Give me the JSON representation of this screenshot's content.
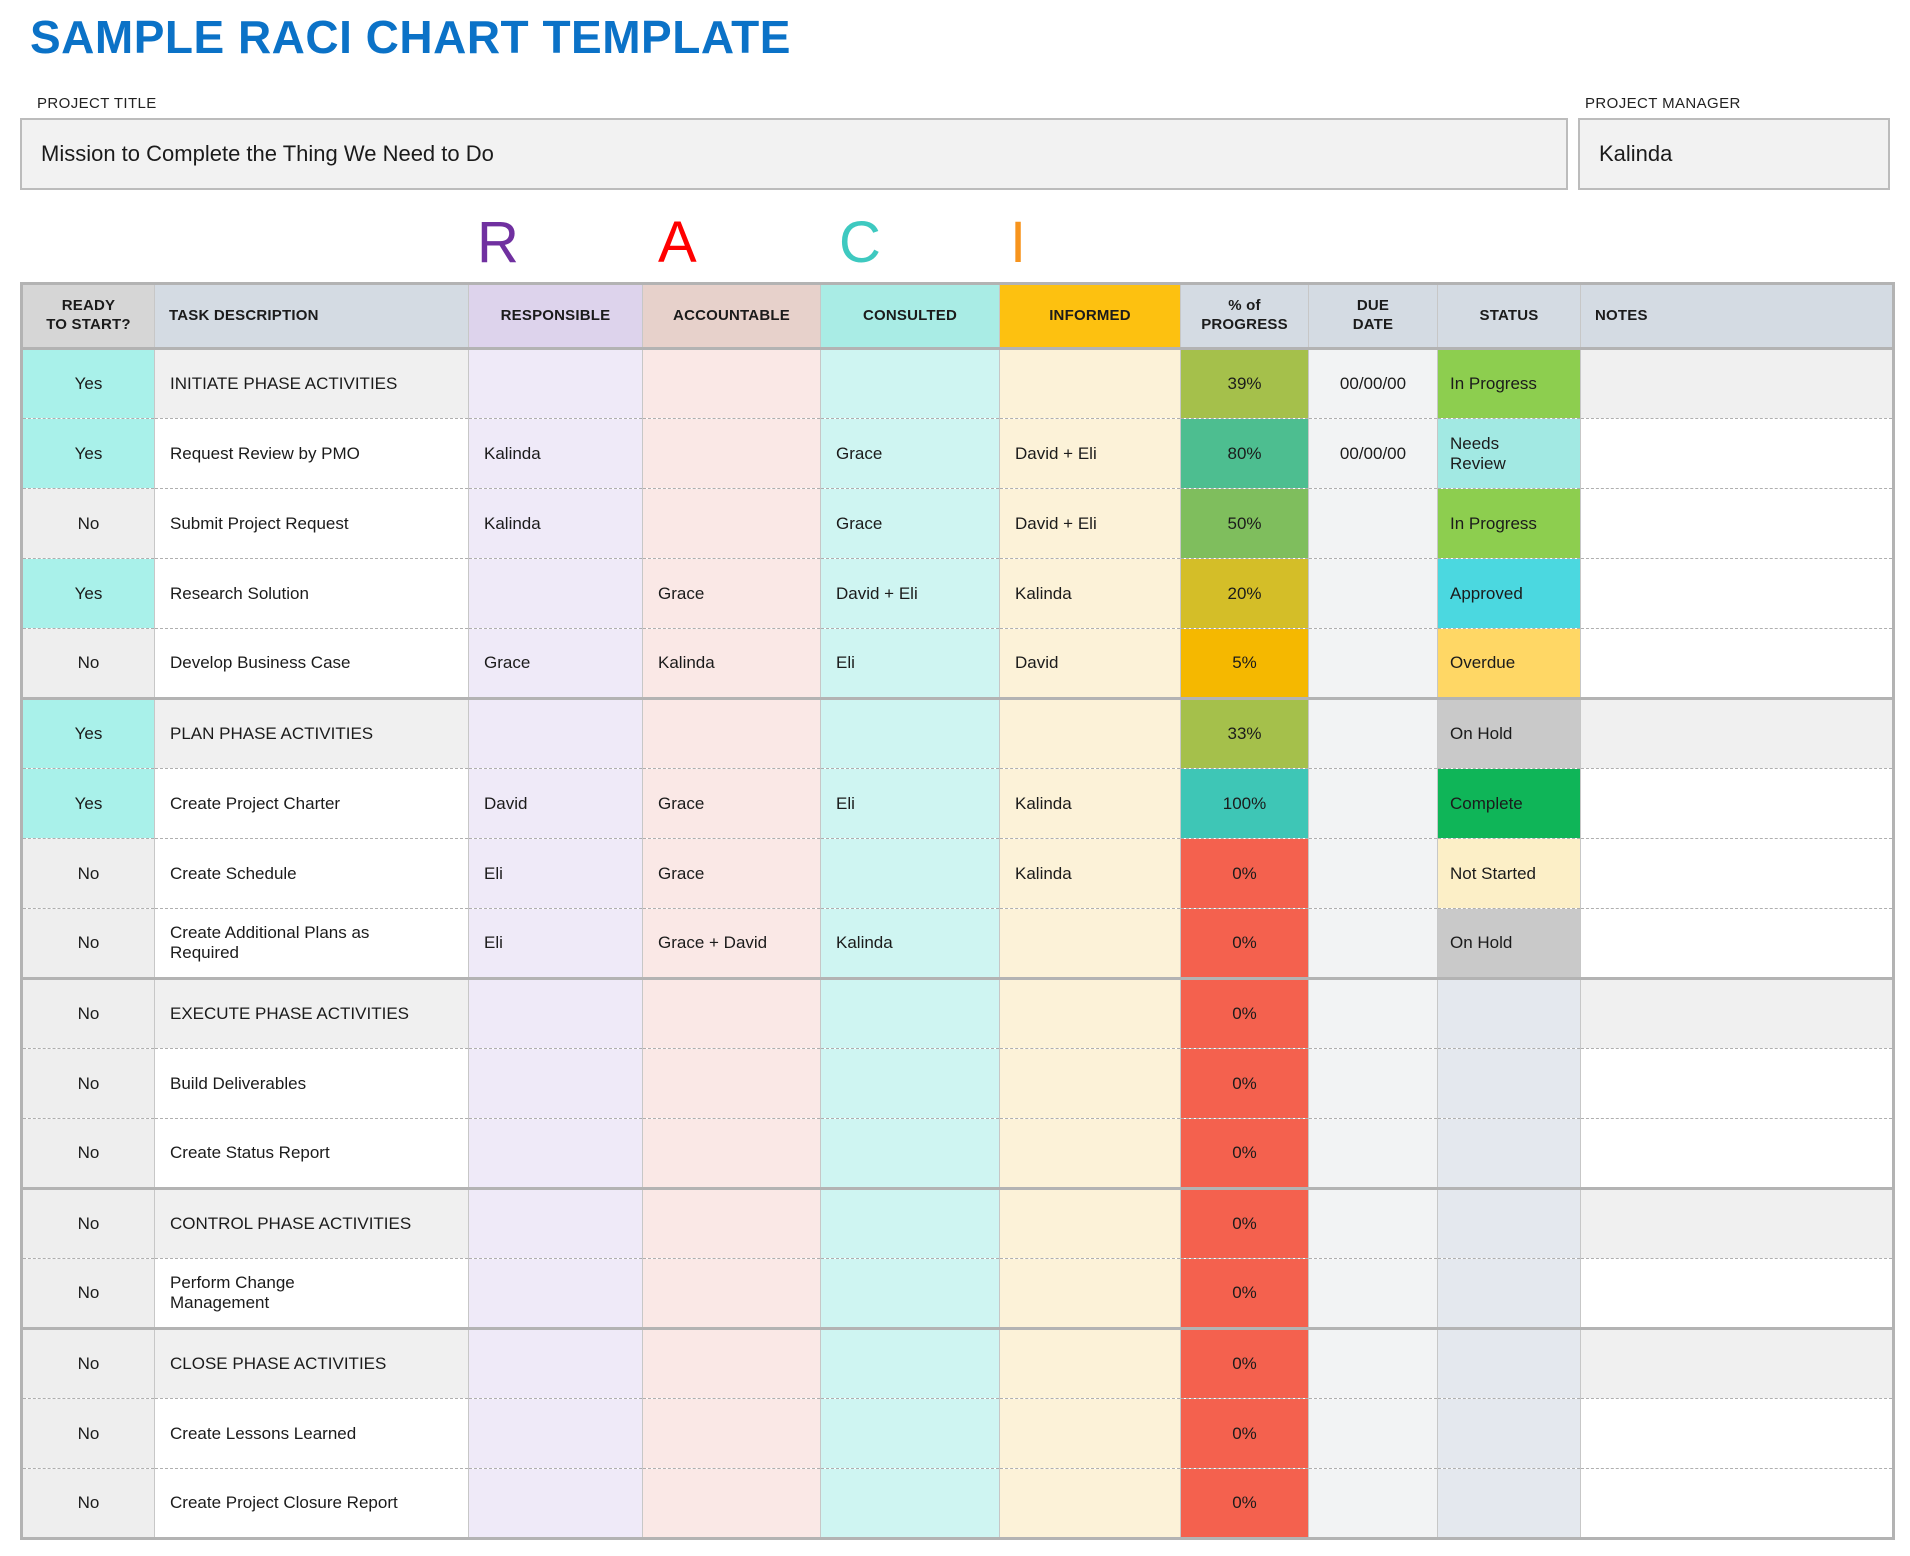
{
  "page": {
    "title": "SAMPLE RACI CHART TEMPLATE",
    "project_title_label": "PROJECT TITLE",
    "project_title_value": "Mission to Complete the Thing We Need to Do",
    "project_manager_label": "PROJECT MANAGER",
    "project_manager_value": "Kalinda"
  },
  "raci_letters": [
    {
      "letter": "R",
      "color": "#7030a0"
    },
    {
      "letter": "A",
      "color": "#ff0000"
    },
    {
      "letter": "C",
      "color": "#3ec9c0"
    },
    {
      "letter": "I",
      "color": "#f7941d"
    }
  ],
  "table": {
    "columns": [
      "READY\nTO START?",
      "TASK DESCRIPTION",
      "RESPONSIBLE",
      "ACCOUNTABLE",
      "CONSULTED",
      "INFORMED",
      "% of\nPROGRESS",
      "DUE\nDATE",
      "STATUS",
      "NOTES"
    ],
    "empty_status_color": "#e4e8ee",
    "rows": [
      {
        "ready": "Yes",
        "task": "INITIATE PHASE ACTIVITIES",
        "responsible": "",
        "accountable": "",
        "consulted": "",
        "informed": "",
        "progress": "39%",
        "progress_color": "#a5c04b",
        "due": "00/00/00",
        "status": "In Progress",
        "status_color": "#8dce4f",
        "section": true
      },
      {
        "ready": "Yes",
        "task": "Request Review by PMO",
        "responsible": "Kalinda",
        "accountable": "",
        "consulted": "Grace",
        "informed": "David + Eli",
        "progress": "80%",
        "progress_color": "#4dbe90",
        "due": "00/00/00",
        "status": "Needs\nReview",
        "status_color": "#a2e9e3"
      },
      {
        "ready": "No",
        "task": "Submit Project Request",
        "responsible": "Kalinda",
        "accountable": "",
        "consulted": "Grace",
        "informed": "David + Eli",
        "progress": "50%",
        "progress_color": "#7fbe5d",
        "due": "",
        "status": "In Progress",
        "status_color": "#8dce4f"
      },
      {
        "ready": "Yes",
        "task": "Research Solution",
        "responsible": "",
        "accountable": "Grace",
        "consulted": "David + Eli",
        "informed": "Kalinda",
        "progress": "20%",
        "progress_color": "#d4be28",
        "due": "",
        "status": "Approved",
        "status_color": "#4bd8e0"
      },
      {
        "ready": "No",
        "task": "Develop Business Case",
        "responsible": "Grace",
        "accountable": "Kalinda",
        "consulted": "Eli",
        "informed": "David",
        "progress": "5%",
        "progress_color": "#f5b800",
        "due": "",
        "status": "Overdue",
        "status_color": "#ffd765"
      },
      {
        "ready": "Yes",
        "task": "PLAN PHASE ACTIVITIES",
        "responsible": "",
        "accountable": "",
        "consulted": "",
        "informed": "",
        "progress": "33%",
        "progress_color": "#a5c04b",
        "due": "",
        "status": "On Hold",
        "status_color": "#c9c9c9",
        "section": true
      },
      {
        "ready": "Yes",
        "task": "Create Project Charter",
        "responsible": "David",
        "accountable": "Grace",
        "consulted": "Eli",
        "informed": "Kalinda",
        "progress": "100%",
        "progress_color": "#3ec6b6",
        "due": "",
        "status": "Complete",
        "status_color": "#0fb558"
      },
      {
        "ready": "No",
        "task": "Create Schedule",
        "responsible": "Eli",
        "accountable": "Grace",
        "consulted": "",
        "informed": "Kalinda",
        "progress": "0%",
        "progress_color": "#f4614e",
        "due": "",
        "status": "Not Started",
        "status_color": "#fcefc7"
      },
      {
        "ready": "No",
        "task": "Create Additional Plans as\nRequired",
        "responsible": "Eli",
        "accountable": "Grace + David",
        "consulted": "Kalinda",
        "informed": "",
        "progress": "0%",
        "progress_color": "#f4614e",
        "due": "",
        "status": "On Hold",
        "status_color": "#c9c9c9"
      },
      {
        "ready": "No",
        "task": "EXECUTE PHASE ACTIVITIES",
        "responsible": "",
        "accountable": "",
        "consulted": "",
        "informed": "",
        "progress": "0%",
        "progress_color": "#f4614e",
        "due": "",
        "status": "",
        "status_color": "",
        "section": true
      },
      {
        "ready": "No",
        "task": "Build Deliverables",
        "responsible": "",
        "accountable": "",
        "consulted": "",
        "informed": "",
        "progress": "0%",
        "progress_color": "#f4614e",
        "due": "",
        "status": "",
        "status_color": ""
      },
      {
        "ready": "No",
        "task": "Create Status Report",
        "responsible": "",
        "accountable": "",
        "consulted": "",
        "informed": "",
        "progress": "0%",
        "progress_color": "#f4614e",
        "due": "",
        "status": "",
        "status_color": ""
      },
      {
        "ready": "No",
        "task": "CONTROL PHASE ACTIVITIES",
        "responsible": "",
        "accountable": "",
        "consulted": "",
        "informed": "",
        "progress": "0%",
        "progress_color": "#f4614e",
        "due": "",
        "status": "",
        "status_color": "",
        "section": true
      },
      {
        "ready": "No",
        "task": "Perform Change\nManagement",
        "responsible": "",
        "accountable": "",
        "consulted": "",
        "informed": "",
        "progress": "0%",
        "progress_color": "#f4614e",
        "due": "",
        "status": "",
        "status_color": ""
      },
      {
        "ready": "No",
        "task": "CLOSE PHASE ACTIVITIES",
        "responsible": "",
        "accountable": "",
        "consulted": "",
        "informed": "",
        "progress": "0%",
        "progress_color": "#f4614e",
        "due": "",
        "status": "",
        "status_color": "",
        "section": true
      },
      {
        "ready": "No",
        "task": "Create Lessons Learned",
        "responsible": "",
        "accountable": "",
        "consulted": "",
        "informed": "",
        "progress": "0%",
        "progress_color": "#f4614e",
        "due": "",
        "status": "",
        "status_color": ""
      },
      {
        "ready": "No",
        "task": "Create Project Closure Report",
        "responsible": "",
        "accountable": "",
        "consulted": "",
        "informed": "",
        "progress": "0%",
        "progress_color": "#f4614e",
        "due": "",
        "status": "",
        "status_color": ""
      }
    ]
  }
}
